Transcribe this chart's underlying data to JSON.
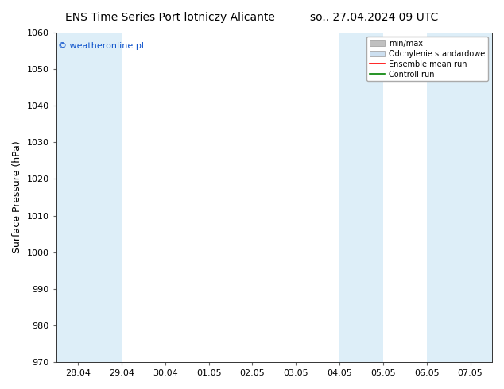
{
  "title_left": "ENS Time Series Port lotniczy Alicante",
  "title_right": "so.. 27.04.2024 09 UTC",
  "ylabel": "Surface Pressure (hPa)",
  "ylim": [
    970,
    1060
  ],
  "yticks": [
    970,
    980,
    990,
    1000,
    1010,
    1020,
    1030,
    1040,
    1050,
    1060
  ],
  "x_labels": [
    "28.04",
    "29.04",
    "30.04",
    "01.05",
    "02.05",
    "03.05",
    "04.05",
    "05.05",
    "06.05",
    "07.05"
  ],
  "x_positions": [
    0,
    1,
    2,
    3,
    4,
    5,
    6,
    7,
    8,
    9
  ],
  "xlim": [
    -0.5,
    9.5
  ],
  "shaded_bands": [
    {
      "x_start": -0.5,
      "x_end": 1.0,
      "color": "#ddeef8"
    },
    {
      "x_start": 6.0,
      "x_end": 7.0,
      "color": "#ddeef8"
    },
    {
      "x_start": 8.0,
      "x_end": 9.5,
      "color": "#ddeef8"
    }
  ],
  "legend_entries": [
    {
      "label": "min/max",
      "color": "#c0c0c0",
      "type": "fill"
    },
    {
      "label": "Odchylenie standardowe",
      "color": "#ccdff0",
      "type": "fill"
    },
    {
      "label": "Ensemble mean run",
      "color": "red",
      "type": "line"
    },
    {
      "label": "Controll run",
      "color": "green",
      "type": "line"
    }
  ],
  "watermark": "© weatheronline.pl",
  "watermark_color": "#1155cc",
  "background_color": "#ffffff",
  "plot_background": "#ffffff",
  "title_fontsize": 10,
  "axis_label_fontsize": 9,
  "tick_fontsize": 8,
  "legend_fontsize": 7,
  "watermark_fontsize": 8
}
